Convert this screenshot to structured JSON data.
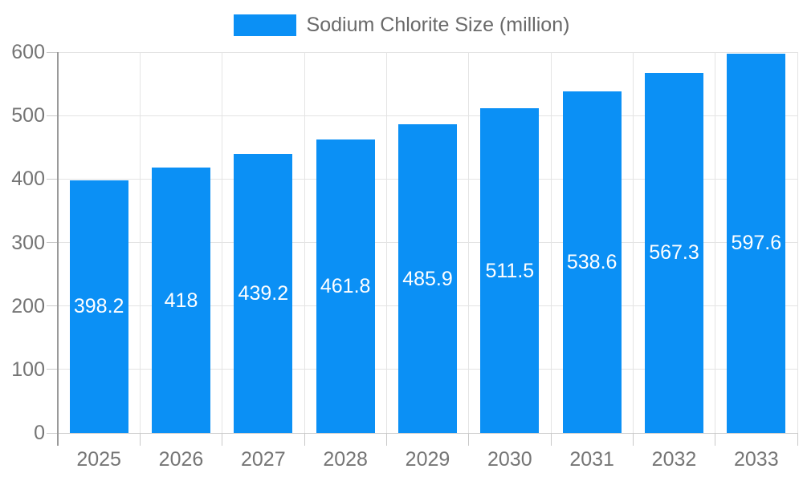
{
  "chart_data": {
    "type": "bar",
    "categories": [
      "2025",
      "2026",
      "2027",
      "2028",
      "2029",
      "2030",
      "2031",
      "2032",
      "2033"
    ],
    "series": [
      {
        "name": "Sodium Chlorite Size (million)",
        "values": [
          398.2,
          418,
          439.2,
          461.8,
          485.9,
          511.5,
          538.6,
          567.3,
          597.6
        ]
      }
    ],
    "title": "",
    "xlabel": "",
    "ylabel": "",
    "ylim": [
      0,
      600
    ],
    "ytick_step": 100,
    "yticks": [
      "0",
      "100",
      "200",
      "300",
      "400",
      "500",
      "600"
    ],
    "grid": true,
    "legend_position": "top",
    "value_labels_position": "inside-middle"
  },
  "colors": {
    "bar": "#0b90f5",
    "bar_value_label": "#ffffff",
    "axis_text": "#757575",
    "legend_text": "#696969",
    "gridline": "#e4e4e4",
    "baseline": "#c8c8c8",
    "axis_line": "#9a9a9a",
    "tick": "#c9c9c9",
    "background": "#ffffff"
  }
}
